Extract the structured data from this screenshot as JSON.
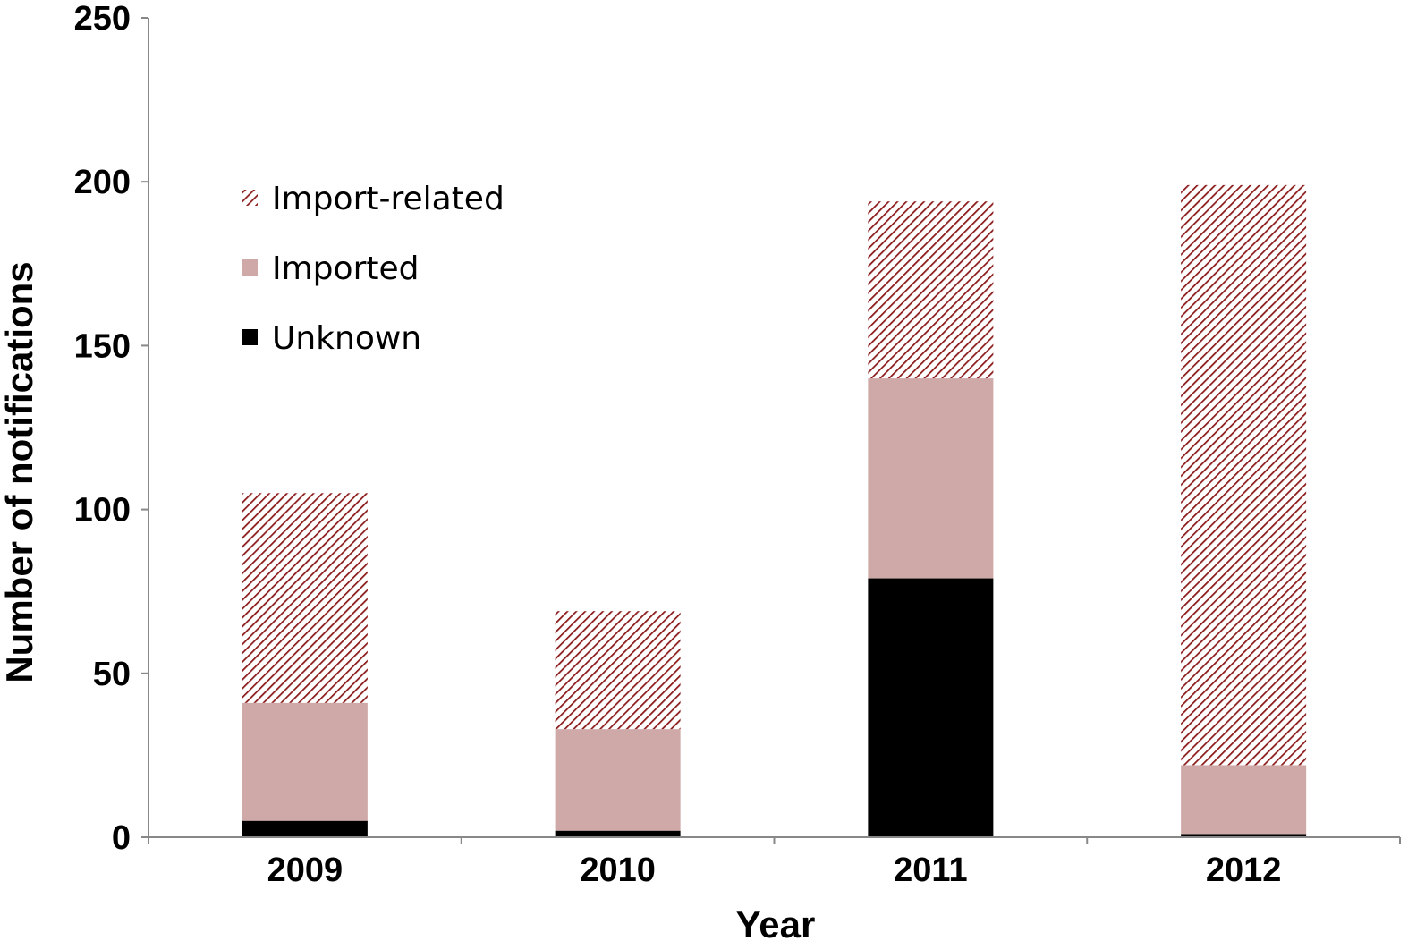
{
  "chart_data": {
    "type": "bar",
    "stacked": true,
    "categories": [
      "2009",
      "2010",
      "2011",
      "2012"
    ],
    "series": [
      {
        "name": "Unknown",
        "values": [
          5,
          2,
          79,
          1
        ],
        "color": "#000000",
        "pattern": "solid"
      },
      {
        "name": "Imported",
        "values": [
          36,
          31,
          61,
          21
        ],
        "color": "#cfa9a8",
        "pattern": "solid"
      },
      {
        "name": "Import-related",
        "values": [
          64,
          36,
          54,
          177
        ],
        "color": "#8b1a1a",
        "pattern": "diagonal-hatch"
      }
    ],
    "xlabel": "Year",
    "ylabel": "Number of notifications",
    "ylim": [
      0,
      250
    ],
    "yticks": [
      "0",
      "50",
      "100",
      "150",
      "200",
      "250"
    ],
    "grid": false,
    "legend": {
      "placement": "top-left",
      "order": [
        "Import-related",
        "Imported",
        "Unknown"
      ]
    }
  }
}
